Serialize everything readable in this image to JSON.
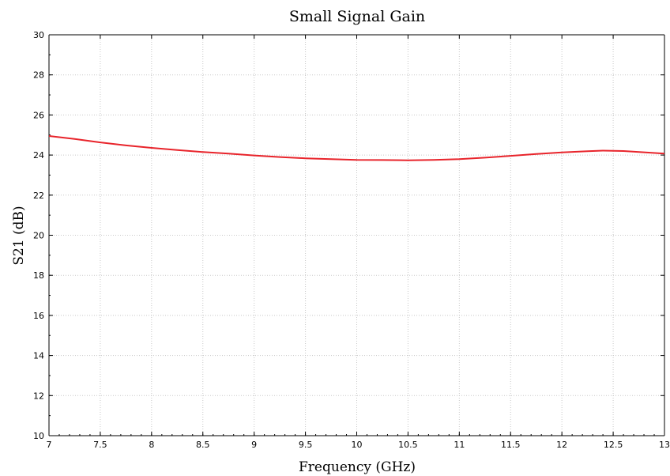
{
  "chart_data": {
    "type": "line",
    "title": "Small Signal Gain",
    "xlabel": "Frequency (GHz)",
    "ylabel": "S21 (dB)",
    "xlim": [
      7,
      13
    ],
    "ylim": [
      10,
      30
    ],
    "x_ticks": [
      "7",
      "7.5",
      "8",
      "8.5",
      "9",
      "9.5",
      "10",
      "10.5",
      "11",
      "11.5",
      "12",
      "12.5",
      "13"
    ],
    "y_ticks": [
      "10",
      "12",
      "14",
      "16",
      "18",
      "20",
      "22",
      "24",
      "26",
      "28",
      "30"
    ],
    "grid": true,
    "series": [
      {
        "color": "#e8242b",
        "x": [
          7.0,
          7.25,
          7.5,
          7.75,
          8.0,
          8.25,
          8.5,
          8.75,
          9.0,
          9.25,
          9.5,
          9.75,
          10.0,
          10.25,
          10.5,
          10.75,
          11.0,
          11.25,
          11.5,
          11.75,
          12.0,
          12.25,
          12.4,
          12.6,
          12.8,
          13.0
        ],
        "y": [
          24.95,
          24.8,
          24.63,
          24.48,
          24.36,
          24.25,
          24.15,
          24.07,
          23.98,
          23.9,
          23.84,
          23.8,
          23.76,
          23.75,
          23.74,
          23.76,
          23.8,
          23.87,
          23.96,
          24.05,
          24.13,
          24.19,
          24.22,
          24.2,
          24.14,
          24.07
        ]
      }
    ]
  }
}
